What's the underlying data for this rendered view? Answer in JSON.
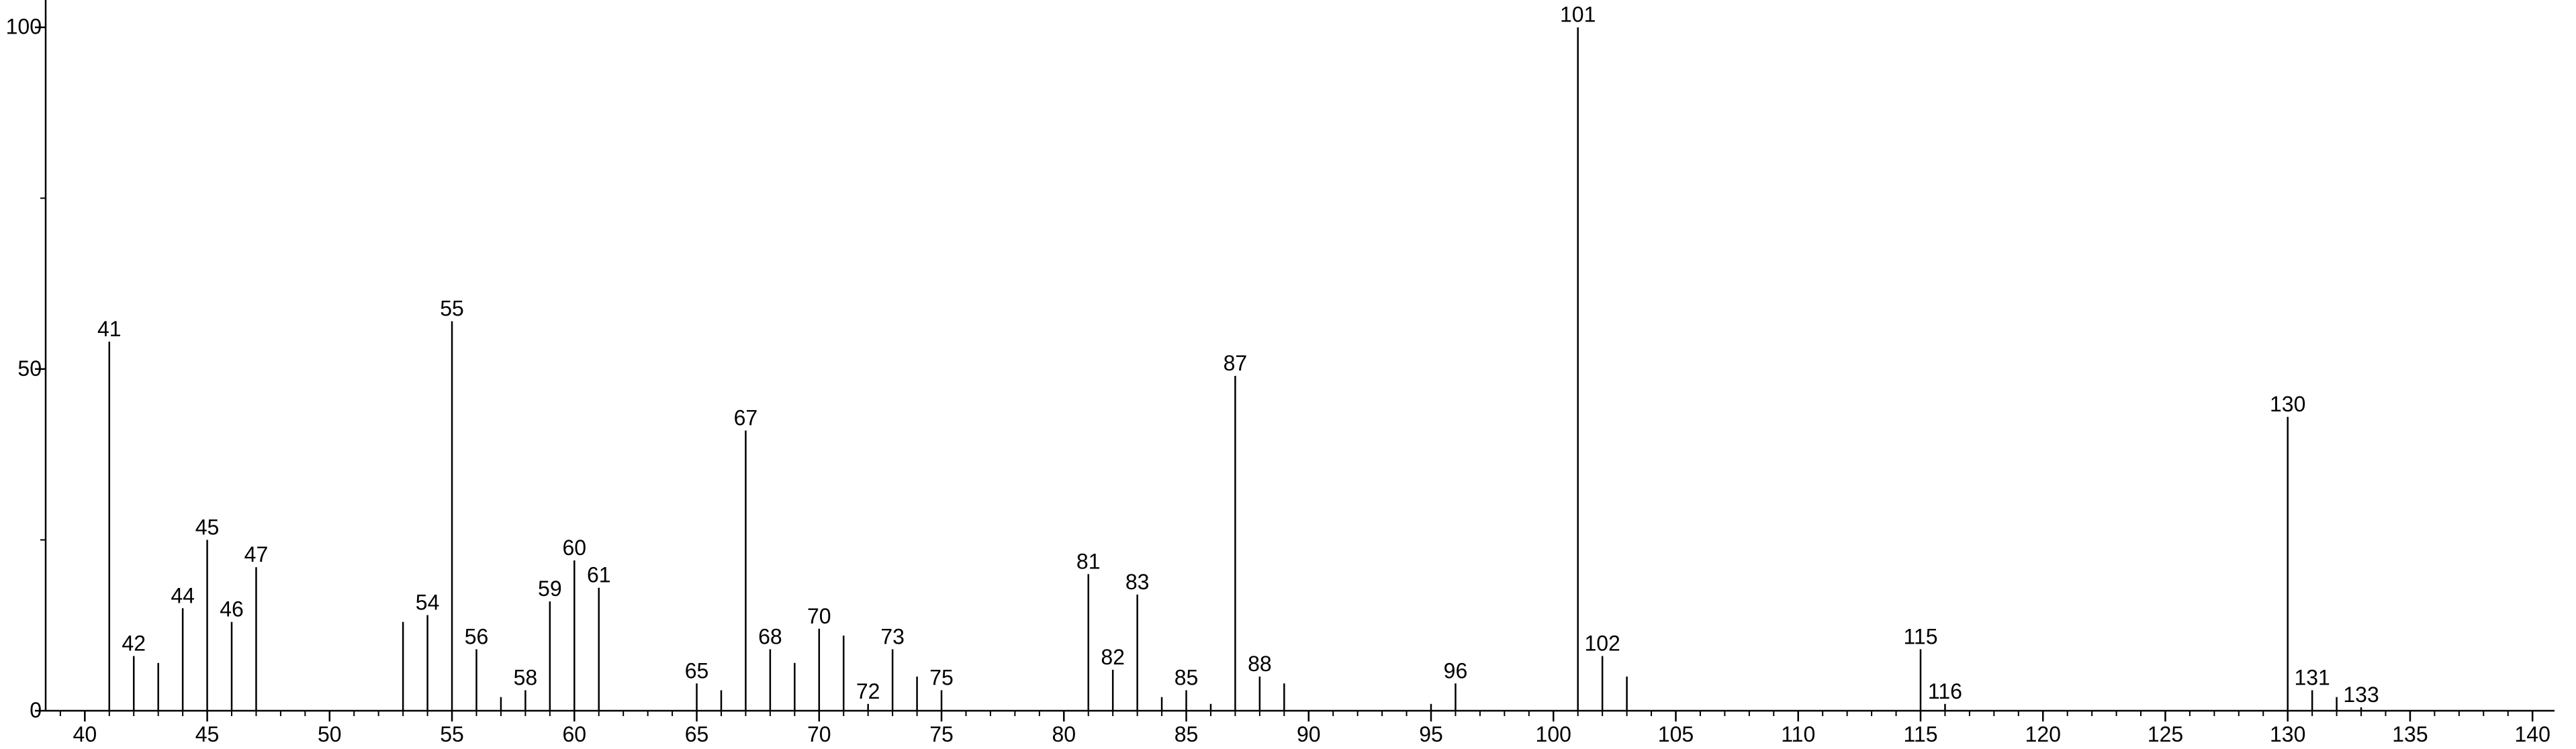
{
  "chart_data": {
    "type": "stem",
    "x": [
      41,
      42,
      43,
      44,
      45,
      46,
      47,
      53,
      54,
      55,
      56,
      57,
      58,
      59,
      60,
      61,
      65,
      66,
      67,
      68,
      69,
      70,
      71,
      72,
      73,
      74,
      75,
      81,
      82,
      83,
      84,
      85,
      86,
      87,
      88,
      89,
      95,
      96,
      101,
      102,
      103,
      115,
      116,
      130,
      131,
      132,
      133
    ],
    "values": [
      54,
      8,
      7,
      15,
      25,
      13,
      21,
      13,
      14,
      57,
      9,
      2,
      3,
      16,
      22,
      18,
      4,
      3,
      41,
      9,
      7,
      12,
      11,
      1,
      9,
      5,
      3,
      20,
      6,
      17,
      2,
      3,
      1,
      49,
      5,
      4,
      1,
      4,
      100,
      8,
      5,
      9,
      1,
      43,
      3,
      2,
      0.5
    ],
    "labeled": [
      true,
      true,
      false,
      true,
      true,
      true,
      true,
      false,
      true,
      true,
      true,
      false,
      true,
      true,
      true,
      true,
      true,
      false,
      true,
      true,
      false,
      true,
      false,
      true,
      true,
      false,
      true,
      true,
      true,
      true,
      false,
      true,
      false,
      true,
      true,
      false,
      false,
      true,
      true,
      true,
      false,
      true,
      true,
      true,
      true,
      false,
      true
    ],
    "color": "#000000",
    "xlim": [
      38.4,
      140.9
    ],
    "xticks": [
      40,
      45,
      50,
      55,
      60,
      65,
      70,
      75,
      80,
      85,
      90,
      95,
      100,
      105,
      110,
      115,
      120,
      125,
      130,
      135,
      140
    ],
    "x_minor_step": 1,
    "ylim": [
      0,
      104
    ],
    "yticks": [
      0,
      50,
      100
    ],
    "y_minor_step": 25
  }
}
